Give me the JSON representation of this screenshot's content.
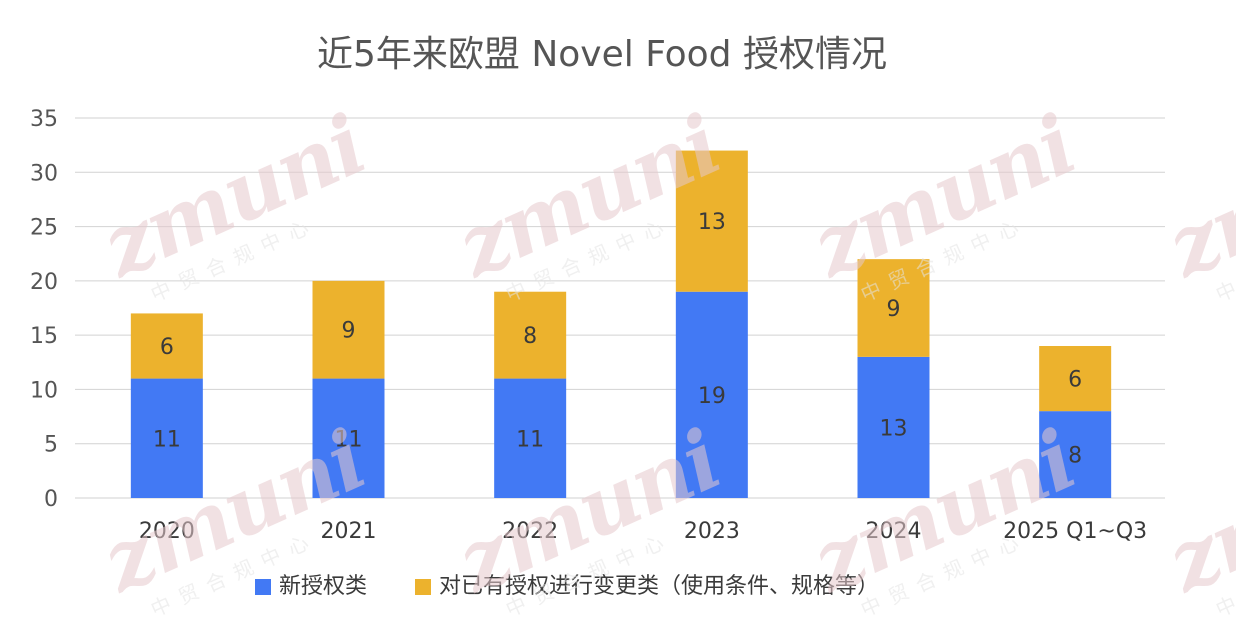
{
  "chart_data": {
    "type": "bar",
    "stacked": true,
    "title": "近5年来欧盟 Novel Food 授权情况",
    "categories": [
      "2020",
      "2021",
      "2022",
      "2023",
      "2024",
      "2025 Q1~Q3"
    ],
    "series": [
      {
        "name": "新授权类",
        "values": [
          11,
          11,
          11,
          19,
          13,
          8
        ],
        "color": "#4279f4"
      },
      {
        "name": "对已有授权进行变更类（使用条件、规格等）",
        "values": [
          6,
          9,
          8,
          13,
          9,
          6
        ],
        "color": "#ecb22d"
      }
    ],
    "ylim": [
      0,
      35
    ],
    "yticks": [
      0,
      5,
      10,
      15,
      20,
      25,
      30,
      35
    ],
    "grid": true,
    "legend": "bottom",
    "xlabel": "",
    "ylabel": ""
  },
  "watermark": {
    "word": "zmuni",
    "sub": "中贸合规中心"
  }
}
